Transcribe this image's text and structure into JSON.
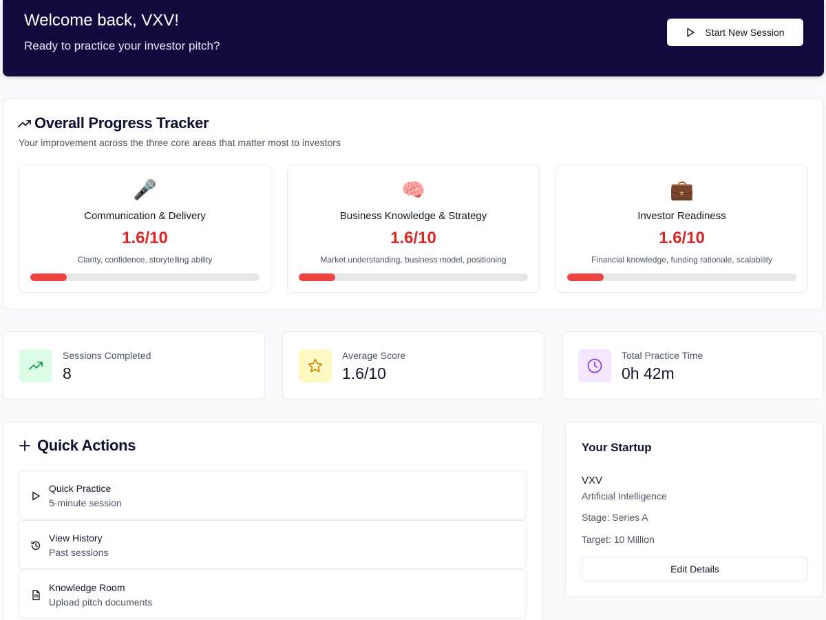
{
  "header": {
    "title": "Welcome back, VXV!",
    "subtitle": "Ready to practice your investor pitch?",
    "start_button_label": "Start New Session"
  },
  "progress_tracker": {
    "title": "Overall Progress Tracker",
    "subtitle": "Your improvement across the three core areas that matter most to investors",
    "metrics": [
      {
        "emoji": "🎤",
        "title": "Communication & Delivery",
        "score": "1.6/10",
        "score_value": 1.6,
        "score_max": 10,
        "description": "Clarity, confidence, storytelling ability"
      },
      {
        "emoji": "🧠",
        "title": "Business Knowledge & Strategy",
        "score": "1.6/10",
        "score_value": 1.6,
        "score_max": 10,
        "description": "Market understanding, business model, positioning"
      },
      {
        "emoji": "💼",
        "title": "Investor Readiness",
        "score": "1.6/10",
        "score_value": 1.6,
        "score_max": 10,
        "description": "Financial knowledge, funding rationale, scalability"
      }
    ]
  },
  "stats": [
    {
      "label": "Sessions Completed",
      "value": "8",
      "icon": "trending-up-icon",
      "icon_bg": "#dcfce7",
      "icon_color": "#16a34a"
    },
    {
      "label": "Average Score",
      "value": "1.6/10",
      "icon": "star-icon",
      "icon_bg": "#fef9c3",
      "icon_color": "#ca8a04"
    },
    {
      "label": "Total Practice Time",
      "value": "0h 42m",
      "icon": "clock-icon",
      "icon_bg": "#f3e8ff",
      "icon_color": "#9333ea"
    }
  ],
  "quick_actions": {
    "title": "Quick Actions",
    "items": [
      {
        "title": "Quick Practice",
        "subtitle": "5-minute session",
        "icon": "play-icon"
      },
      {
        "title": "View History",
        "subtitle": "Past sessions",
        "icon": "history-icon"
      },
      {
        "title": "Knowledge Room",
        "subtitle": "Upload pitch documents",
        "icon": "document-icon"
      }
    ]
  },
  "startup": {
    "title": "Your Startup",
    "name": "VXV",
    "industry": "Artificial Intelligence",
    "stage": "Stage: Series A",
    "target": "Target: 10 Million",
    "edit_button_label": "Edit Details"
  },
  "colors": {
    "hero_bg": "#120c3e",
    "score_red": "#dc2626",
    "bar_fill": "#ef4444"
  }
}
